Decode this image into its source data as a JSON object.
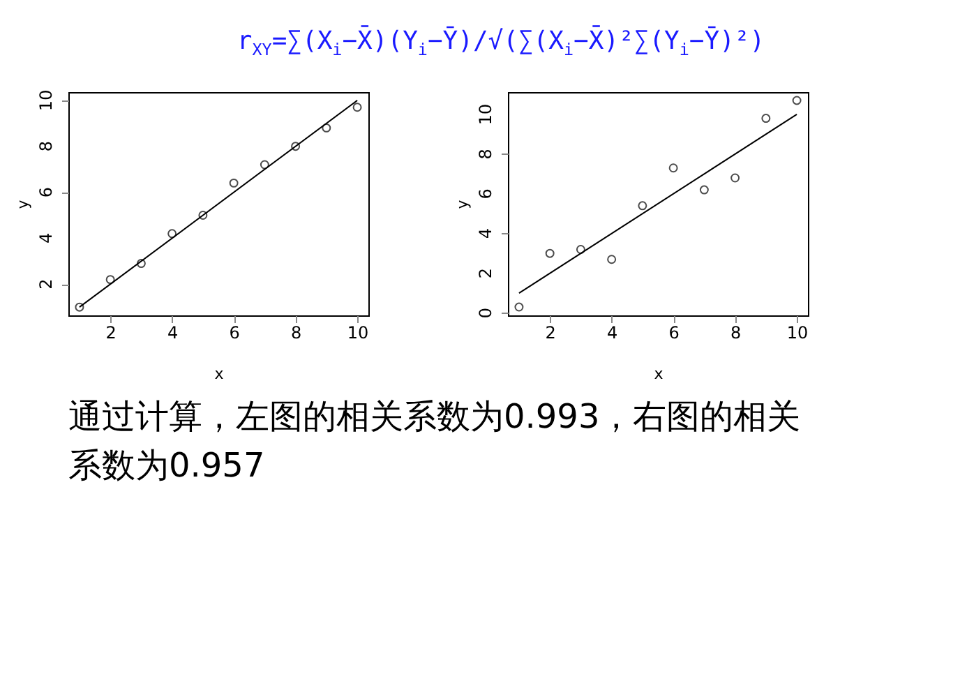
{
  "chart_data": [
    {
      "type": "scatter",
      "xlabel": "x",
      "ylabel": "y",
      "marker": "circle",
      "grid": false,
      "annotations": [
        "r$_{XY}$=∑(X$_{i}$−X̄)(Y$_{i}$−Ȳ)/√(∑(X$_{i}$−X̄)²∑(Y$_{i}$−Ȳ)²)"
      ],
      "xlim": [
        0.64,
        10.36
      ],
      "xticks": [
        2,
        4,
        6,
        8,
        10
      ],
      "ylim": [
        0.64,
        10.36
      ],
      "yticks": [
        2,
        4,
        6,
        8,
        10
      ],
      "series": [
        {
          "color": "#000000",
          "x": [
            1,
            2,
            3,
            4,
            5,
            6,
            7,
            8,
            9,
            10
          ],
          "values": [
            1.0,
            2.2,
            2.9,
            4.2,
            5.0,
            6.4,
            7.2,
            8.0,
            8.8,
            9.7
          ]
        },
        {
          "type": "line",
          "marker": "none",
          "color": "#000000",
          "x": [
            1,
            10
          ],
          "values": [
            1,
            10
          ]
        }
      ]
    },
    {
      "type": "scatter",
      "xlabel": "x",
      "ylabel": "y",
      "marker": "circle",
      "grid": false,
      "annotations": [
        "通过计算，左图的相关系数为0.993，右图的相关系数为0.957"
      ],
      "xlim": [
        0.64,
        10.36
      ],
      "xticks": [
        2,
        4,
        6,
        8,
        10
      ],
      "ylim": [
        -0.12,
        11.12
      ],
      "yticks": [
        0,
        2,
        4,
        6,
        8,
        10
      ],
      "series": [
        {
          "color": "#000000",
          "x": [
            1,
            2,
            3,
            4,
            5,
            6,
            7,
            8,
            9,
            10
          ],
          "values": [
            0.3,
            3.0,
            3.2,
            2.7,
            5.4,
            7.3,
            6.2,
            6.8,
            9.8,
            10.7
          ]
        },
        {
          "type": "line",
          "marker": "none",
          "color": "#000000",
          "x": [
            1,
            10
          ],
          "values": [
            1,
            10
          ]
        }
      ]
    }
  ]
}
